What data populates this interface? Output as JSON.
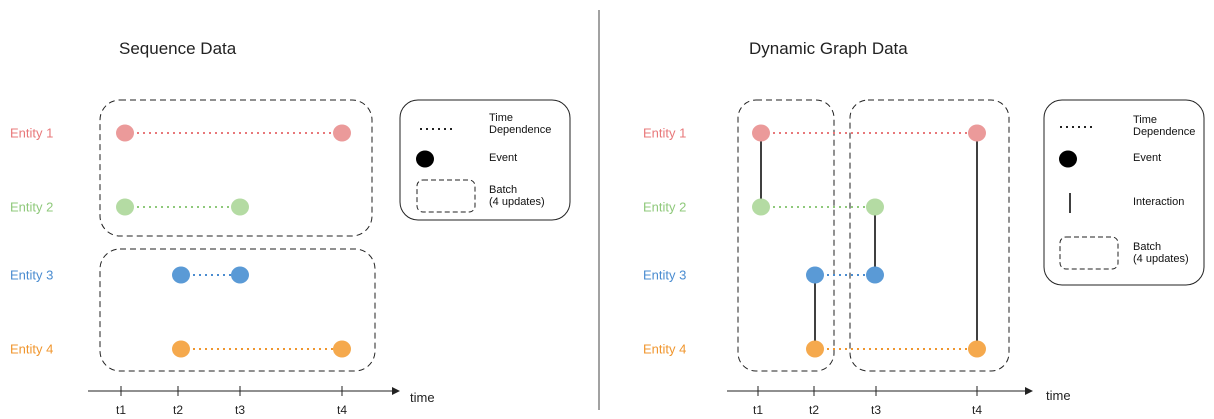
{
  "left_panel": {
    "title": "Sequence Data",
    "entities": [
      {
        "label": "Entity 1",
        "color": "#e8787a"
      },
      {
        "label": "Entity 2",
        "color": "#8fc97b"
      },
      {
        "label": "Entity 3",
        "color": "#4a8cd0"
      },
      {
        "label": "Entity 4",
        "color": "#f0962e"
      }
    ],
    "ticks": [
      "t1",
      "t2",
      "t3",
      "t4"
    ],
    "axis_label": "time",
    "legend": {
      "time_dependence": "Time\nDependence",
      "event": "Event",
      "batch": "Batch\n(4 updates)"
    }
  },
  "right_panel": {
    "title": "Dynamic Graph Data",
    "entities": [
      {
        "label": "Entity 1",
        "color": "#e8787a"
      },
      {
        "label": "Entity 2",
        "color": "#8fc97b"
      },
      {
        "label": "Entity 3",
        "color": "#4a8cd0"
      },
      {
        "label": "Entity 4",
        "color": "#f0962e"
      }
    ],
    "ticks": [
      "t1",
      "t2",
      "t3",
      "t4"
    ],
    "axis_label": "time",
    "legend": {
      "time_dependence": "Time\nDependence",
      "event": "Event",
      "interaction": "Interaction",
      "batch": "Batch\n(4 updates)"
    }
  },
  "colors": {
    "entity_1": "#e8787a",
    "entity_2": "#8fc97b",
    "entity_3": "#4a8cd0",
    "entity_4": "#f0962e",
    "event_fill_1": "#eb9a9a",
    "event_fill_2": "#b4dba3",
    "event_fill_3": "#5a9ad6",
    "event_fill_4": "#f5a94d"
  }
}
